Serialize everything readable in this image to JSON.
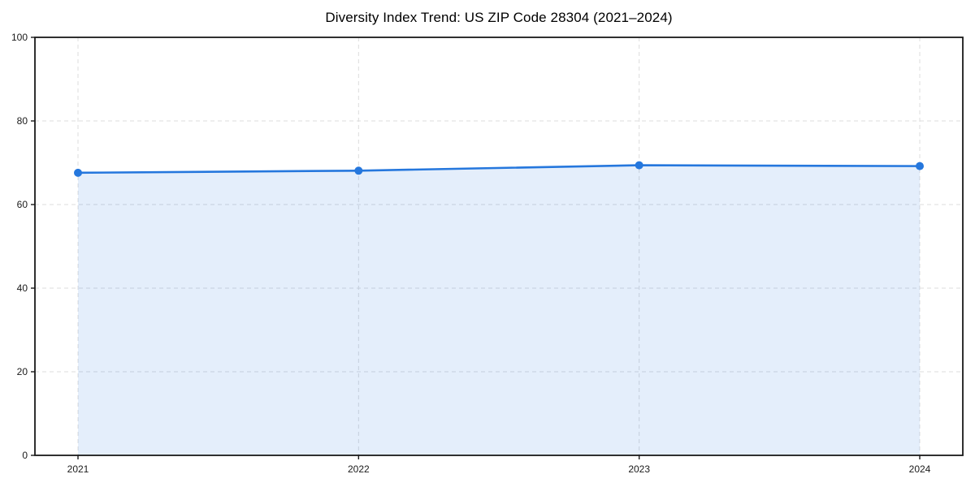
{
  "chart_data": {
    "type": "line",
    "title": "Diversity Index Trend: US ZIP Code 28304 (2021–2024)",
    "x": [
      "2021",
      "2022",
      "2023",
      "2024"
    ],
    "series": [
      {
        "name": "Diversity Index",
        "values": [
          67.6,
          68.1,
          69.4,
          69.2
        ]
      }
    ],
    "xlabel": "",
    "ylabel": "",
    "ylim": [
      0,
      100
    ],
    "yticks": [
      0,
      20,
      40,
      60,
      80,
      100
    ],
    "grid": true,
    "grid_style": "dashed",
    "legend_position": "none",
    "marker": "circle",
    "area_fill": true,
    "colors": {
      "line": "#2577dd",
      "marker": "#2577dd",
      "fill": "#2577dd",
      "fill_opacity": 0.12,
      "axis": "#1a1a1a",
      "grid": "#dcdcdc",
      "tick_text": "#1a1a1a",
      "background": "#ffffff"
    }
  }
}
